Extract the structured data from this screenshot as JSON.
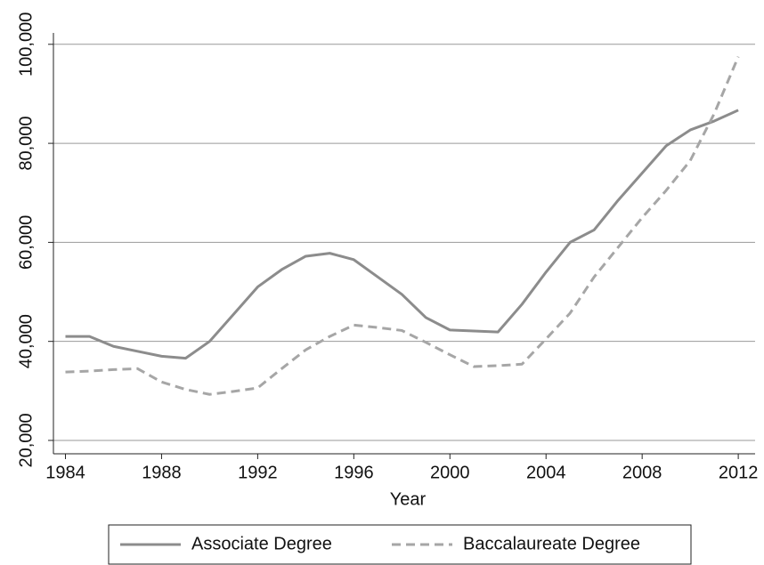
{
  "chart_data": {
    "type": "line",
    "x_label": "Year",
    "x": [
      1984,
      1985,
      1986,
      1987,
      1988,
      1989,
      1990,
      1991,
      1992,
      1993,
      1994,
      1995,
      1996,
      1997,
      1998,
      1999,
      2000,
      2001,
      2002,
      2003,
      2004,
      2005,
      2006,
      2007,
      2008,
      2009,
      2010,
      2011,
      2012
    ],
    "series": [
      {
        "name": "Associate Degree",
        "color": "#8c8c8c",
        "dash": "solid",
        "values": [
          41000,
          41000,
          39000,
          38000,
          37000,
          36600,
          40000,
          45500,
          51000,
          54500,
          57200,
          57800,
          56500,
          53000,
          49500,
          44800,
          42300,
          42100,
          41900,
          47500,
          54000,
          60000,
          62500,
          68500,
          74000,
          79500,
          82700,
          84500,
          86700
        ]
      },
      {
        "name": "Baccalaureate Degree",
        "color": "#a6a6a6",
        "dash": "dashed",
        "values": [
          33800,
          34000,
          34300,
          34500,
          31800,
          30300,
          29300,
          29900,
          30600,
          34500,
          38300,
          41000,
          43300,
          42800,
          42200,
          39800,
          37300,
          34900,
          35100,
          35400,
          40500,
          45700,
          53000,
          59000,
          65000,
          70500,
          76500,
          86000,
          97500
        ]
      }
    ],
    "xlim": [
      1983.5,
      2012.7
    ],
    "xticks": [
      1984,
      1988,
      1992,
      1996,
      2000,
      2004,
      2008,
      2012
    ],
    "ylim": [
      17300,
      102300
    ],
    "yticks": [
      {
        "value": 20000,
        "label": "20,000"
      },
      {
        "value": 40000,
        "label": "40,000"
      },
      {
        "value": 60000,
        "label": "60,000"
      },
      {
        "value": 80000,
        "label": "80,000"
      },
      {
        "value": 100000,
        "label": "100,000"
      }
    ],
    "grid": true,
    "legend": "bottom"
  }
}
